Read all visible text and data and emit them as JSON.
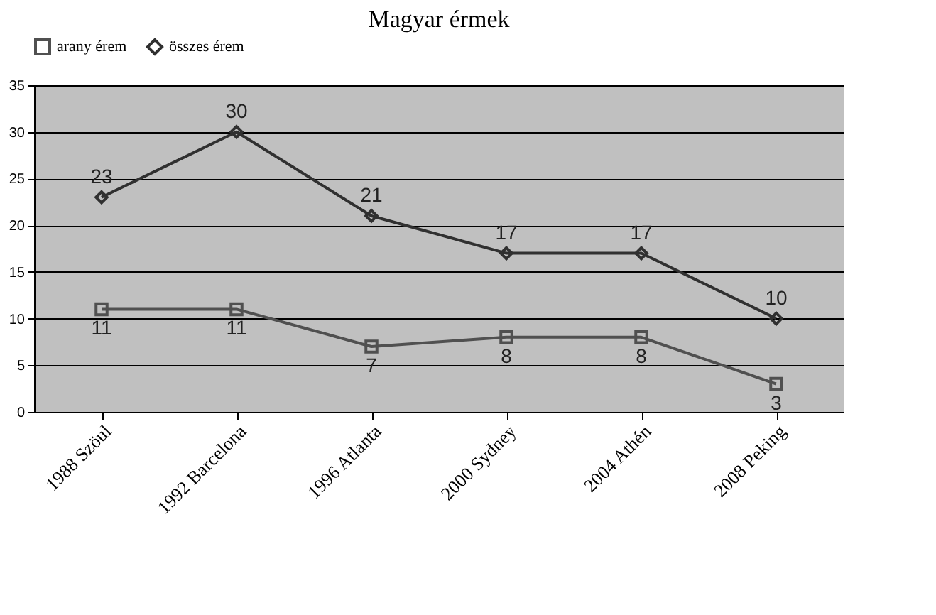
{
  "chart_data": {
    "type": "line",
    "title": "Magyar érmek",
    "categories": [
      "1988 Szöul",
      "1992 Barcelona",
      "1996 Atlanta",
      "2000 Sydney",
      "2004 Athén",
      "2008 Peking"
    ],
    "series": [
      {
        "name": "arany érem",
        "color": "#505050",
        "marker": "square",
        "values": [
          11,
          11,
          7,
          8,
          8,
          3
        ]
      },
      {
        "name": "összes érem",
        "color": "#303030",
        "marker": "diamond",
        "values": [
          23,
          30,
          21,
          17,
          17,
          10
        ]
      }
    ],
    "ylim": [
      0,
      35
    ],
    "yticks": [
      0,
      5,
      10,
      15,
      20,
      25,
      30,
      35
    ],
    "grid": "y",
    "legend": "top",
    "data_labels": true
  }
}
